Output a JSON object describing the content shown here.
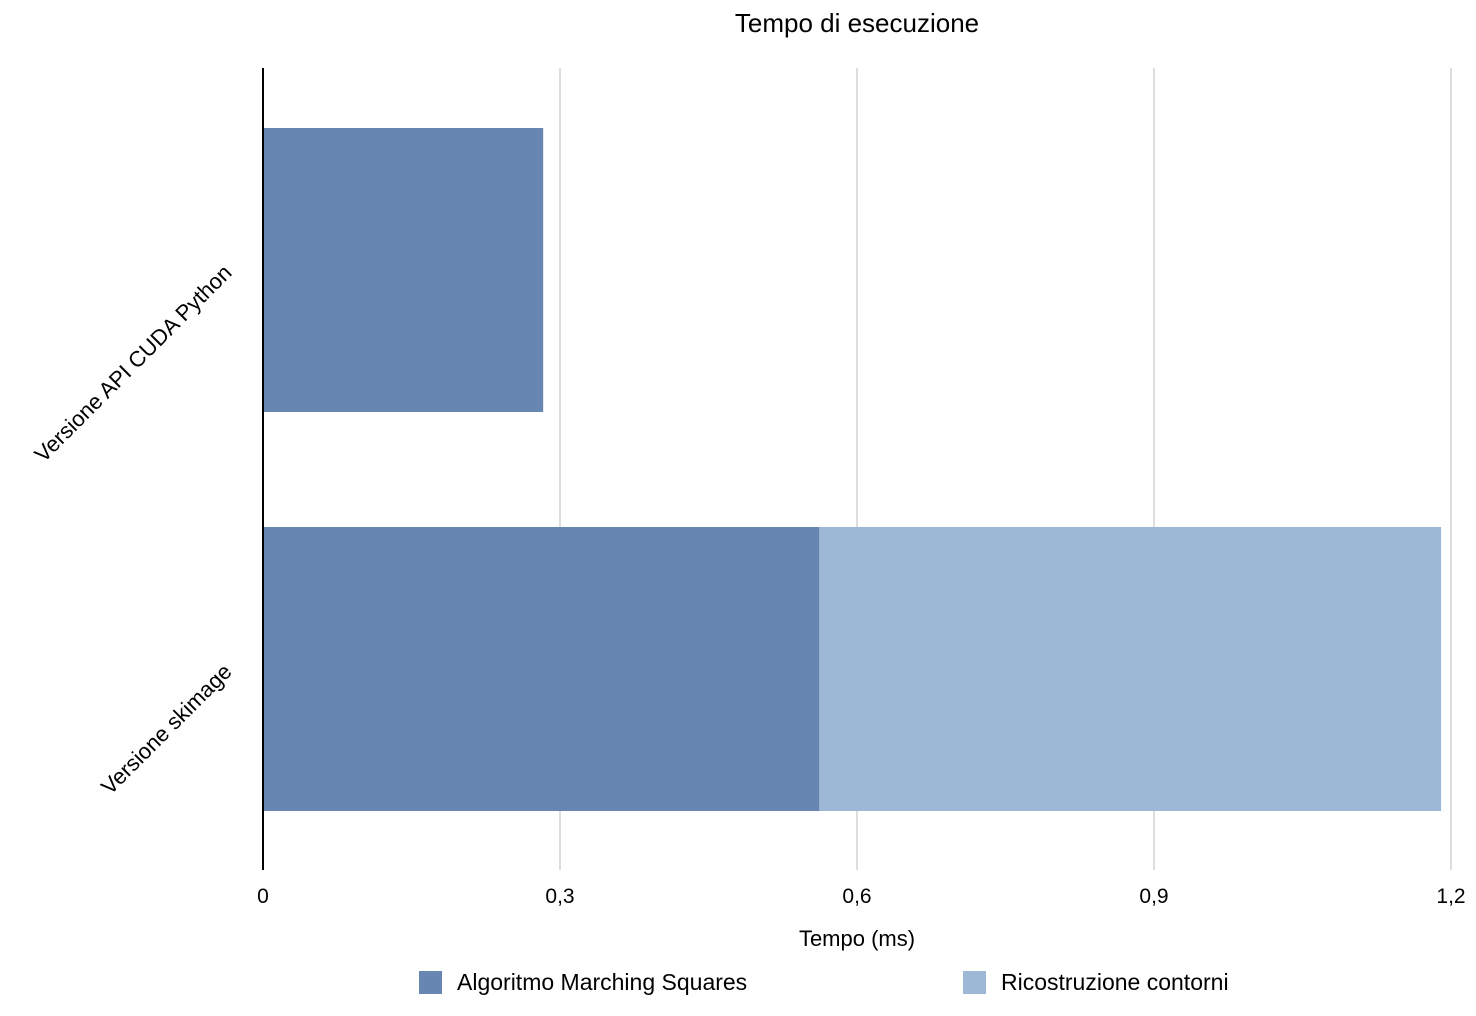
{
  "chart_data": {
    "type": "bar",
    "orientation": "horizontal",
    "stacked": true,
    "title": "Tempo di esecuzione",
    "xlabel": "Tempo (ms)",
    "ylabel": "",
    "xlim": [
      0,
      1.2
    ],
    "x_ticks": [
      "0",
      "0,3",
      "0,6",
      "0,9",
      "1,2"
    ],
    "x_tick_values": [
      0,
      0.3,
      0.6,
      0.9,
      1.2
    ],
    "categories": [
      "Versione API CUDA Python",
      "Versione skimage"
    ],
    "series": [
      {
        "name": "Algoritmo Marching Squares",
        "color": "#6786b2",
        "values": [
          0.283,
          0.562
        ]
      },
      {
        "name": "Ricostruzione contorni",
        "color": "#9db8d6",
        "values": [
          0,
          0.628
        ]
      }
    ],
    "grid": true,
    "legend_position": "bottom"
  }
}
